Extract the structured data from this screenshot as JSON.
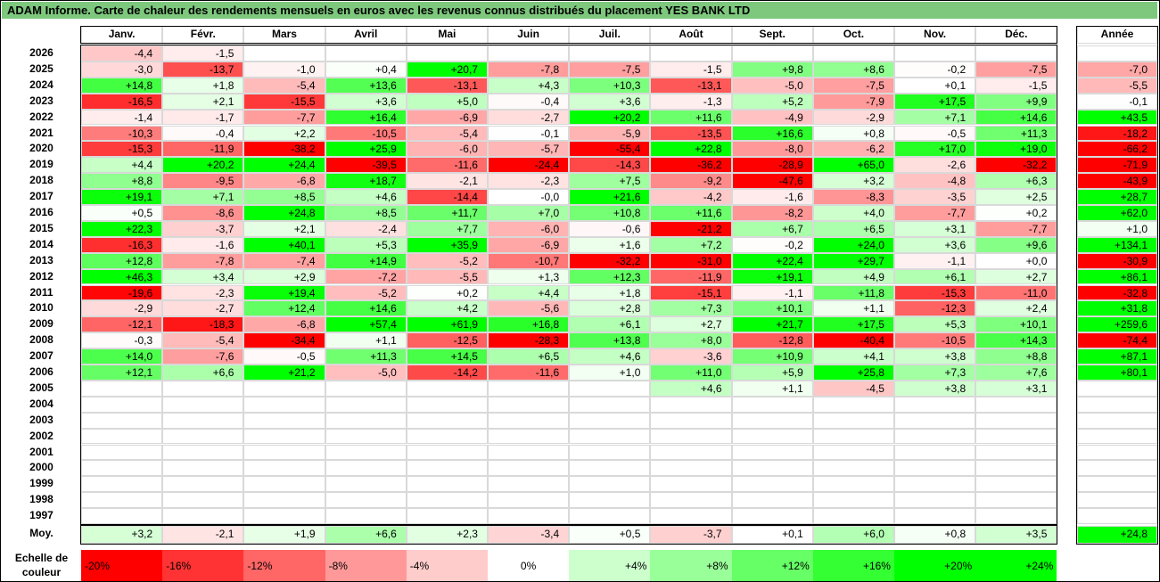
{
  "title": "ADAM Informe. Carte de chaleur des rendements mensuels en euros avec les revenus connus distribués du placement YES BANK LTD",
  "chart_data": {
    "type": "heatmap",
    "months": [
      "Janv.",
      "Févr.",
      "Mars",
      "Avril",
      "Mai",
      "Juin",
      "Juil.",
      "Août",
      "Sept.",
      "Oct.",
      "Nov.",
      "Déc."
    ],
    "annual_label": "Année",
    "rows": [
      {
        "year": "2026",
        "months": [
          "-4,4",
          "-1,5",
          "",
          "",
          "",
          "",
          "",
          "",
          "",
          "",
          "",
          ""
        ],
        "annual": ""
      },
      {
        "year": "2025",
        "months": [
          "-3,0",
          "-13,7",
          "-1,0",
          "+0,4",
          "+20,7",
          "-7,8",
          "-7,5",
          "-1,5",
          "+9,8",
          "+8,6",
          "-0,2",
          "-7,5"
        ],
        "annual": "-7,0"
      },
      {
        "year": "2024",
        "months": [
          "+14,8",
          "+1,8",
          "-5,4",
          "+13,6",
          "-13,1",
          "+4,3",
          "+10,3",
          "-13,1",
          "-5,0",
          "-7,5",
          "+0,1",
          "-1,5"
        ],
        "annual": "-5,5"
      },
      {
        "year": "2023",
        "months": [
          "-16,5",
          "+2,1",
          "-15,5",
          "+3,6",
          "+5,0",
          "-0,4",
          "+3,6",
          "-1,3",
          "+5,2",
          "-7,9",
          "+17,5",
          "+9,9"
        ],
        "annual": "-0,1"
      },
      {
        "year": "2022",
        "months": [
          "-1,4",
          "-1,7",
          "-7,7",
          "+16,4",
          "-6,9",
          "-2,7",
          "+20,2",
          "+11,6",
          "-4,9",
          "-2,9",
          "+7,1",
          "+14,6"
        ],
        "annual": "+43,5"
      },
      {
        "year": "2021",
        "months": [
          "-10,3",
          "-0,4",
          "+2,2",
          "-10,5",
          "-5,4",
          "-0,1",
          "-5,9",
          "-13,5",
          "+16,6",
          "+0,8",
          "-0,5",
          "+11,3"
        ],
        "annual": "-18,2"
      },
      {
        "year": "2020",
        "months": [
          "-15,3",
          "-11,9",
          "-38,2",
          "+25,9",
          "-6,0",
          "-5,7",
          "-55,4",
          "+22,8",
          "-8,0",
          "-6,2",
          "+17,0",
          "+19,0"
        ],
        "annual": "-66,2"
      },
      {
        "year": "2019",
        "months": [
          "+4,4",
          "+20,2",
          "+24,4",
          "-39,5",
          "-11,6",
          "-24,4",
          "-14,3",
          "-36,2",
          "-28,9",
          "+65,0",
          "-2,6",
          "-32,2"
        ],
        "annual": "-71,9"
      },
      {
        "year": "2018",
        "months": [
          "+8,8",
          "-9,5",
          "-6,8",
          "+18,7",
          "-2,1",
          "-2,3",
          "+7,5",
          "-9,2",
          "-47,6",
          "+3,2",
          "-4,8",
          "+6,3"
        ],
        "annual": "-43,9"
      },
      {
        "year": "2017",
        "months": [
          "+19,1",
          "+7,1",
          "+8,5",
          "+4,6",
          "-14,4",
          "-0,0",
          "+21,6",
          "-4,2",
          "-1,6",
          "-8,3",
          "-3,5",
          "+2,5"
        ],
        "annual": "+28,7"
      },
      {
        "year": "2016",
        "months": [
          "+0,5",
          "-8,6",
          "+24,8",
          "+8,5",
          "+11,7",
          "+7,0",
          "+10,8",
          "+11,6",
          "-8,2",
          "+4,0",
          "-7,7",
          "+0,2"
        ],
        "annual": "+62,0"
      },
      {
        "year": "2015",
        "months": [
          "+22,3",
          "-3,7",
          "+2,1",
          "-2,4",
          "+7,7",
          "-6,0",
          "-0,6",
          "-21,2",
          "+6,7",
          "+6,5",
          "+3,1",
          "-7,7"
        ],
        "annual": "+1,0"
      },
      {
        "year": "2014",
        "months": [
          "-16,3",
          "-1,6",
          "+40,1",
          "+5,3",
          "+35,9",
          "-6,9",
          "+1,6",
          "+7,2",
          "-0,2",
          "+24,0",
          "+3,6",
          "+9,6"
        ],
        "annual": "+134,1"
      },
      {
        "year": "2013",
        "months": [
          "+12,8",
          "-7,8",
          "-7,4",
          "+14,9",
          "-5,2",
          "-10,7",
          "-32,2",
          "-31,0",
          "+22,4",
          "+29,7",
          "-1,1",
          "+0,0"
        ],
        "annual": "-30,9"
      },
      {
        "year": "2012",
        "months": [
          "+46,3",
          "+3,4",
          "+2,9",
          "-7,2",
          "-5,5",
          "+1,3",
          "+12,3",
          "-11,9",
          "+19,1",
          "+4,9",
          "+6,1",
          "+2,7"
        ],
        "annual": "+86,1"
      },
      {
        "year": "2011",
        "months": [
          "-19,6",
          "-2,3",
          "+19,4",
          "-5,2",
          "+0,2",
          "+4,4",
          "+1,8",
          "-15,1",
          "-1,1",
          "+11,8",
          "-15,3",
          "-11,0"
        ],
        "annual": "-32,8"
      },
      {
        "year": "2010",
        "months": [
          "-2,9",
          "-2,7",
          "+12,4",
          "+14,6",
          "+4,2",
          "-5,6",
          "+2,8",
          "+7,3",
          "+10,1",
          "+1,1",
          "-12,3",
          "+2,4"
        ],
        "annual": "+31,8"
      },
      {
        "year": "2009",
        "months": [
          "-12,1",
          "-18,3",
          "-6,8",
          "+57,4",
          "+61,9",
          "+16,8",
          "+6,1",
          "+2,7",
          "+21,7",
          "+17,5",
          "+5,3",
          "+10,1"
        ],
        "annual": "+259,6"
      },
      {
        "year": "2008",
        "months": [
          "-0,3",
          "-5,4",
          "-34,4",
          "+1,1",
          "-12,5",
          "-28,3",
          "+13,8",
          "+8,0",
          "-12,8",
          "-40,4",
          "-10,5",
          "+14,3"
        ],
        "annual": "-74,4"
      },
      {
        "year": "2007",
        "months": [
          "+14,0",
          "-7,6",
          "-0,5",
          "+11,3",
          "+14,5",
          "+6,5",
          "+4,6",
          "-3,6",
          "+10,9",
          "+4,1",
          "+3,8",
          "+8,8"
        ],
        "annual": "+87,1"
      },
      {
        "year": "2006",
        "months": [
          "+12,1",
          "+6,6",
          "+21,2",
          "-5,0",
          "-14,2",
          "-11,6",
          "+1,0",
          "+11,0",
          "+5,9",
          "+25,8",
          "+7,3",
          "+7,6"
        ],
        "annual": "+80,1"
      },
      {
        "year": "2005",
        "months": [
          "",
          "",
          "",
          "",
          "",
          "",
          "",
          "+4,6",
          "+1,1",
          "-4,5",
          "+3,8",
          "+3,1"
        ],
        "annual": ""
      },
      {
        "year": "2004",
        "months": [
          "",
          "",
          "",
          "",
          "",
          "",
          "",
          "",
          "",
          "",
          "",
          ""
        ],
        "annual": ""
      },
      {
        "year": "2003",
        "months": [
          "",
          "",
          "",
          "",
          "",
          "",
          "",
          "",
          "",
          "",
          "",
          ""
        ],
        "annual": ""
      },
      {
        "year": "2002",
        "months": [
          "",
          "",
          "",
          "",
          "",
          "",
          "",
          "",
          "",
          "",
          "",
          ""
        ],
        "annual": ""
      },
      {
        "year": "2001",
        "months": [
          "",
          "",
          "",
          "",
          "",
          "",
          "",
          "",
          "",
          "",
          "",
          ""
        ],
        "annual": ""
      },
      {
        "year": "2000",
        "months": [
          "",
          "",
          "",
          "",
          "",
          "",
          "",
          "",
          "",
          "",
          "",
          ""
        ],
        "annual": ""
      },
      {
        "year": "1999",
        "months": [
          "",
          "",
          "",
          "",
          "",
          "",
          "",
          "",
          "",
          "",
          "",
          ""
        ],
        "annual": ""
      },
      {
        "year": "1998",
        "months": [
          "",
          "",
          "",
          "",
          "",
          "",
          "",
          "",
          "",
          "",
          "",
          ""
        ],
        "annual": ""
      },
      {
        "year": "1997",
        "months": [
          "",
          "",
          "",
          "",
          "",
          "",
          "",
          "",
          "",
          "",
          "",
          ""
        ],
        "annual": ""
      }
    ],
    "average": {
      "label": "Moy.",
      "months": [
        "+3,2",
        "-2,1",
        "+1,9",
        "+6,6",
        "+2,3",
        "-3,4",
        "+0,5",
        "-3,7",
        "+0,1",
        "+6,0",
        "+0,8",
        "+3,5"
      ],
      "annual": "+24,8"
    },
    "scale": {
      "label_line1": "Echelle de",
      "label_line2": "couleur",
      "steps": [
        {
          "label": "-20%",
          "color": "#ff0000"
        },
        {
          "label": "-16%",
          "color": "#ff3333"
        },
        {
          "label": "-12%",
          "color": "#ff6666"
        },
        {
          "label": "-8%",
          "color": "#ff9999"
        },
        {
          "label": "-4%",
          "color": "#ffcccc"
        },
        {
          "label": "0%",
          "color": "#ffffff"
        },
        {
          "label": "+4%",
          "color": "#ccffcc"
        },
        {
          "label": "+8%",
          "color": "#99ff99"
        },
        {
          "label": "+12%",
          "color": "#66ff66"
        },
        {
          "label": "+16%",
          "color": "#33ff33"
        },
        {
          "label": "+20%",
          "color": "#00ff00"
        },
        {
          "label": "+24%",
          "color": "#00ff00"
        }
      ]
    }
  }
}
